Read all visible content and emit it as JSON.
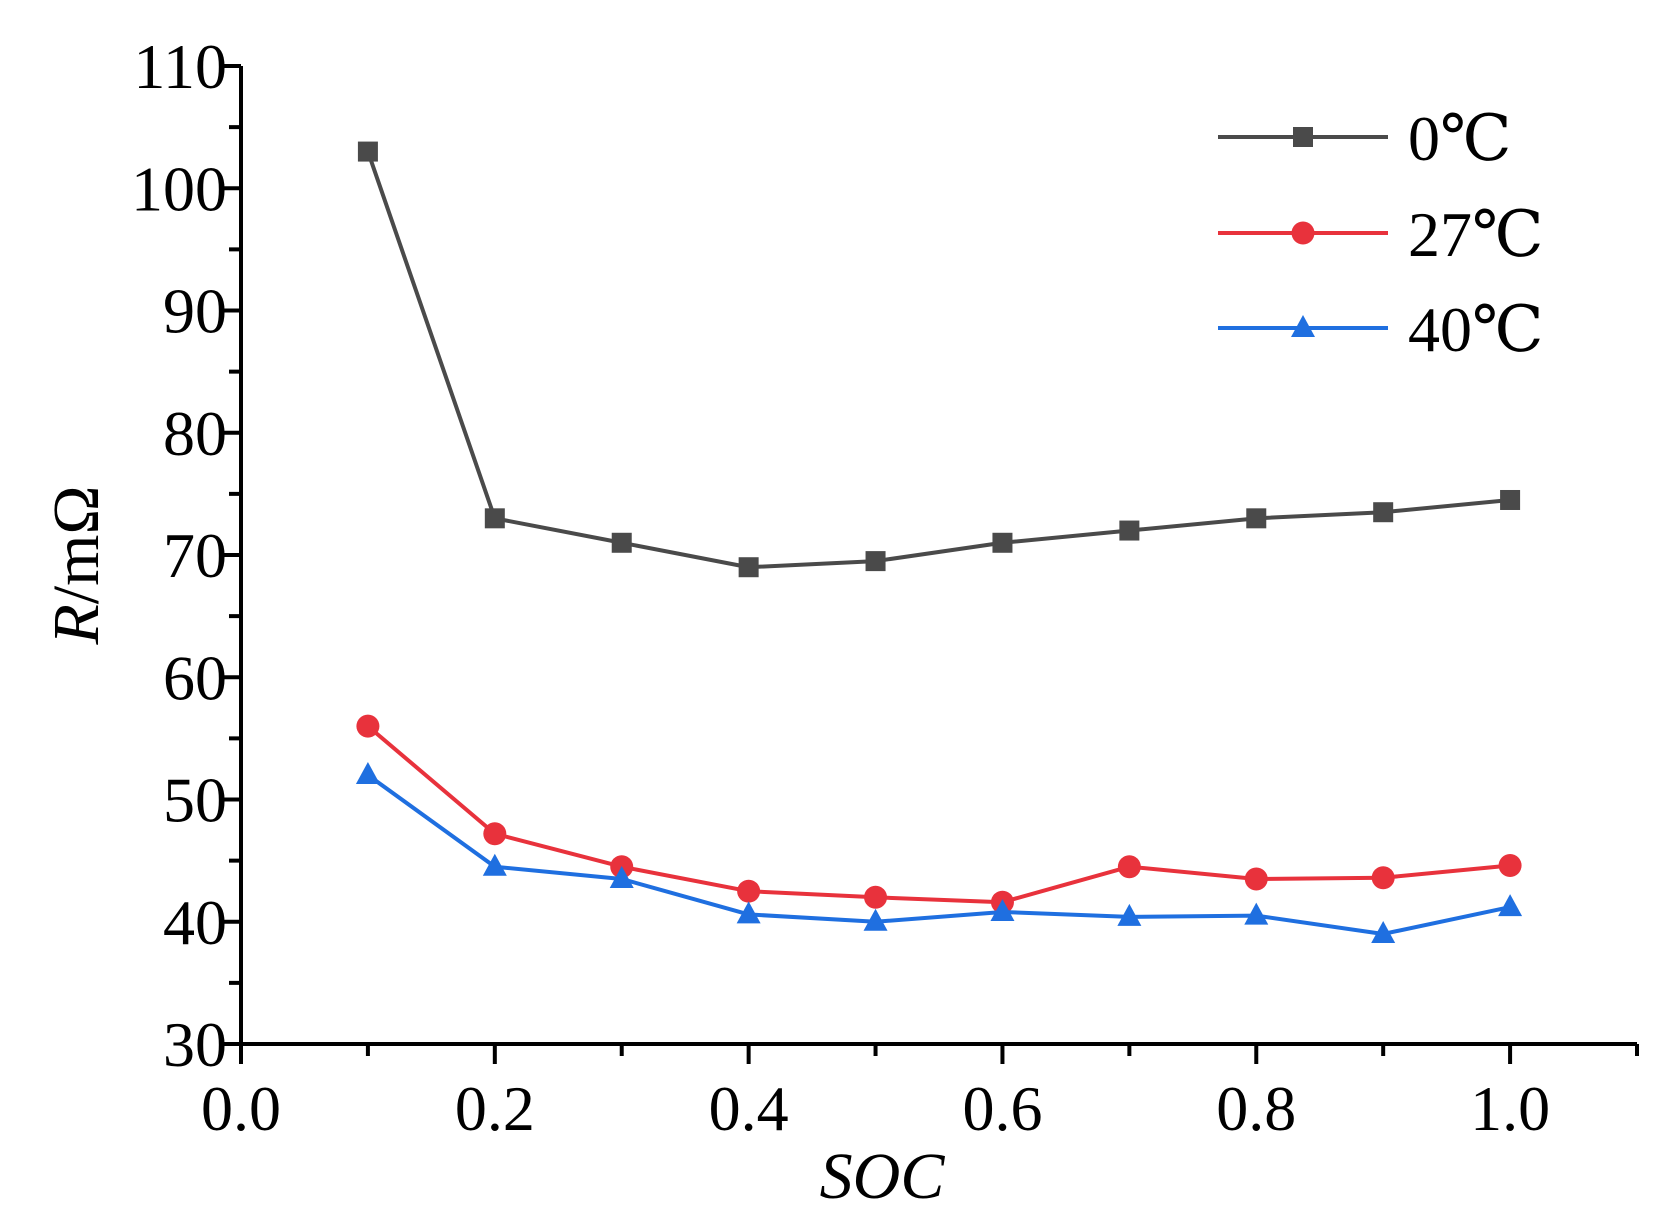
{
  "chart_data": {
    "type": "line",
    "title": "",
    "xlabel": "SOC",
    "ylabel_italic": "R",
    "ylabel_rest": "/mΩ",
    "xlim": [
      0.0,
      1.1
    ],
    "ylim": [
      30,
      110
    ],
    "xticks": [
      0.0,
      0.2,
      0.4,
      0.6,
      0.8,
      1.0
    ],
    "xtick_labels": [
      "0.0",
      "0.2",
      "0.4",
      "0.6",
      "0.8",
      "1.0"
    ],
    "yticks": [
      30,
      40,
      50,
      60,
      70,
      80,
      90,
      100,
      110
    ],
    "ytick_labels": [
      "30",
      "40",
      "50",
      "60",
      "70",
      "80",
      "90",
      "100",
      "110"
    ],
    "grid": false,
    "legend_position": "top-right",
    "x": [
      0.1,
      0.2,
      0.3,
      0.4,
      0.5,
      0.6,
      0.7,
      0.8,
      0.9,
      1.0
    ],
    "series": [
      {
        "name": "0℃",
        "color": "#4a4a4a",
        "marker": "square",
        "values": [
          103,
          73,
          71,
          69,
          69.5,
          71,
          72,
          73,
          73.5,
          74.5
        ]
      },
      {
        "name": "27℃",
        "color": "#e8323c",
        "marker": "circle",
        "values": [
          56,
          47.2,
          44.5,
          42.5,
          42,
          41.6,
          44.5,
          43.5,
          43.6,
          44.6
        ]
      },
      {
        "name": "40℃",
        "color": "#1f6fe0",
        "marker": "triangle",
        "values": [
          52,
          44.5,
          43.5,
          40.6,
          40,
          40.8,
          40.4,
          40.5,
          39,
          41.2
        ]
      }
    ]
  }
}
